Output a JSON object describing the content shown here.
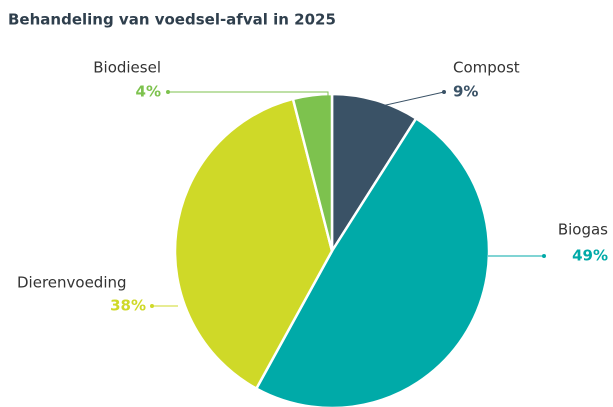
{
  "chart_data": {
    "type": "pie",
    "title": "Behandeling van voedsel-afval in 2025",
    "categories": [
      "Compost",
      "Biogas",
      "Dierenvoeding",
      "Biodiesel"
    ],
    "values": [
      9,
      49,
      38,
      4
    ],
    "value_labels": [
      "9%",
      "49%",
      "38%",
      "4%"
    ],
    "colors": [
      "#3a5266",
      "#00aaa8",
      "#cfd928",
      "#7dc24e"
    ]
  }
}
